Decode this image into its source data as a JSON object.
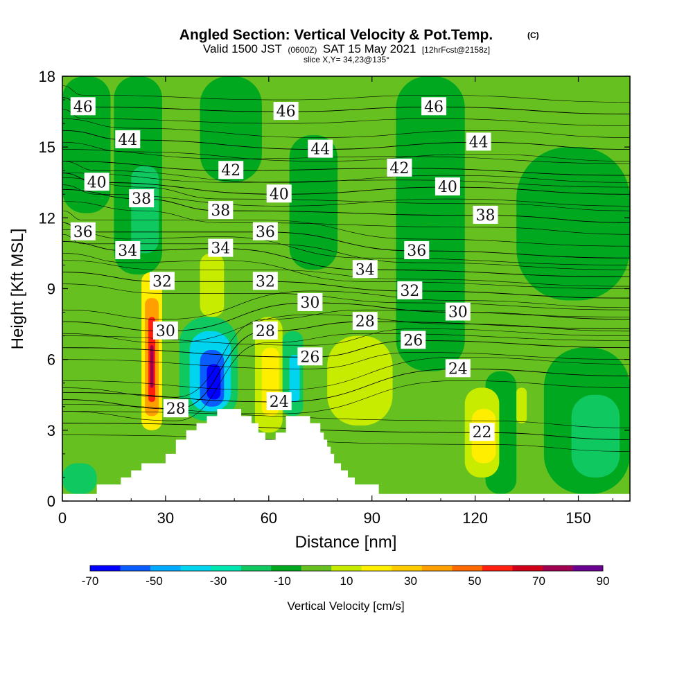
{
  "title": {
    "main": "Angled Section: Vertical Velocity & Pot.Temp.",
    "main_tag": "(C)",
    "valid_prefix": "Valid 1500 JST",
    "valid_utc": "(0600Z)",
    "valid_date": "SAT 15 May 2021",
    "forecast": "[12hrFcst@2158z]",
    "slice": "slice X,Y= 34,23@135°"
  },
  "chart_data": {
    "type": "heatmap",
    "xlabel": "Distance [nm]",
    "ylabel": "Height [Kft MSL]",
    "xlim": [
      0,
      165
    ],
    "ylim": [
      0,
      18
    ],
    "x_ticks": [
      "0",
      "30",
      "60",
      "90",
      "120",
      "150"
    ],
    "y_ticks": [
      "0",
      "3",
      "6",
      "9",
      "12",
      "15",
      "18"
    ],
    "grid": false,
    "colorbar": {
      "label": "Vertical Velocity [cm/s]",
      "tick_labels": [
        "-70",
        "-50",
        "-30",
        "-10",
        "10",
        "30",
        "50",
        "70",
        "90"
      ],
      "levels": [
        -70,
        -60,
        -50,
        -40,
        -30,
        -20,
        -10,
        0,
        10,
        20,
        30,
        40,
        50,
        60,
        70,
        80,
        90
      ],
      "colors": [
        "#0000ff",
        "#0a5cff",
        "#00aaff",
        "#00d4ee",
        "#00e6b0",
        "#10c860",
        "#00a820",
        "#66c020",
        "#c8ec00",
        "#ffee00",
        "#ffcc00",
        "#ffa000",
        "#ff6a00",
        "#ff2010",
        "#d00018",
        "#a00050",
        "#6a0090"
      ]
    },
    "terrain_kft": [
      [
        0,
        0.3
      ],
      [
        10,
        0.3
      ],
      [
        10,
        0.7
      ],
      [
        17,
        0.7
      ],
      [
        17,
        1.0
      ],
      [
        20,
        1.0
      ],
      [
        20,
        1.3
      ],
      [
        23,
        1.3
      ],
      [
        23,
        1.6
      ],
      [
        30,
        1.6
      ],
      [
        30,
        2.0
      ],
      [
        33,
        2.0
      ],
      [
        33,
        2.6
      ],
      [
        36,
        2.6
      ],
      [
        36,
        3.0
      ],
      [
        39,
        3.0
      ],
      [
        39,
        3.3
      ],
      [
        42,
        3.3
      ],
      [
        42,
        3.6
      ],
      [
        45,
        3.6
      ],
      [
        45,
        3.9
      ],
      [
        52,
        3.9
      ],
      [
        52,
        3.6
      ],
      [
        55,
        3.6
      ],
      [
        55,
        3.3
      ],
      [
        57,
        3.3
      ],
      [
        57,
        2.9
      ],
      [
        59,
        2.9
      ],
      [
        59,
        2.6
      ],
      [
        62,
        2.6
      ],
      [
        62,
        2.9
      ],
      [
        65,
        2.9
      ],
      [
        65,
        3.6
      ],
      [
        72,
        3.6
      ],
      [
        72,
        3.3
      ],
      [
        75,
        3.3
      ],
      [
        75,
        2.9
      ],
      [
        76,
        2.9
      ],
      [
        76,
        2.6
      ],
      [
        77,
        2.6
      ],
      [
        77,
        2.3
      ],
      [
        78,
        2.3
      ],
      [
        78,
        2.0
      ],
      [
        79,
        2.0
      ],
      [
        79,
        1.6
      ],
      [
        81,
        1.6
      ],
      [
        81,
        1.3
      ],
      [
        83,
        1.3
      ],
      [
        83,
        1.0
      ],
      [
        85,
        1.0
      ],
      [
        85,
        0.7
      ],
      [
        92,
        0.7
      ],
      [
        92,
        0.3
      ],
      [
        165,
        0.3
      ]
    ],
    "theta_contour_labels": [
      {
        "text": "46",
        "x": 6,
        "y": 16.7
      },
      {
        "text": "46",
        "x": 65,
        "y": 16.5
      },
      {
        "text": "46",
        "x": 108,
        "y": 16.7
      },
      {
        "text": "44",
        "x": 19,
        "y": 15.3
      },
      {
        "text": "44",
        "x": 75,
        "y": 14.9
      },
      {
        "text": "44",
        "x": 121,
        "y": 15.2
      },
      {
        "text": "42",
        "x": 49,
        "y": 14.0
      },
      {
        "text": "42",
        "x": 98,
        "y": 14.1
      },
      {
        "text": "40",
        "x": 10,
        "y": 13.5
      },
      {
        "text": "40",
        "x": 63,
        "y": 13.0
      },
      {
        "text": "40",
        "x": 112,
        "y": 13.3
      },
      {
        "text": "38",
        "x": 23,
        "y": 12.8
      },
      {
        "text": "38",
        "x": 46,
        "y": 12.3
      },
      {
        "text": "38",
        "x": 123,
        "y": 12.1
      },
      {
        "text": "36",
        "x": 6,
        "y": 11.4
      },
      {
        "text": "36",
        "x": 59,
        "y": 11.4
      },
      {
        "text": "36",
        "x": 103,
        "y": 10.6
      },
      {
        "text": "34",
        "x": 19,
        "y": 10.6
      },
      {
        "text": "34",
        "x": 46,
        "y": 10.7
      },
      {
        "text": "34",
        "x": 88,
        "y": 9.8
      },
      {
        "text": "32",
        "x": 29,
        "y": 9.3
      },
      {
        "text": "32",
        "x": 59,
        "y": 9.3
      },
      {
        "text": "32",
        "x": 101,
        "y": 8.9
      },
      {
        "text": "30",
        "x": 30,
        "y": 7.2
      },
      {
        "text": "30",
        "x": 72,
        "y": 8.4
      },
      {
        "text": "30",
        "x": 115,
        "y": 8.0
      },
      {
        "text": "28",
        "x": 33,
        "y": 3.9
      },
      {
        "text": "28",
        "x": 59,
        "y": 7.2
      },
      {
        "text": "28",
        "x": 88,
        "y": 7.6
      },
      {
        "text": "26",
        "x": 72,
        "y": 6.1
      },
      {
        "text": "26",
        "x": 102,
        "y": 6.8
      },
      {
        "text": "24",
        "x": 63,
        "y": 4.2
      },
      {
        "text": "24",
        "x": 115,
        "y": 5.6
      },
      {
        "text": "22",
        "x": 122,
        "y": 2.9
      }
    ],
    "vertical_velocity_cells": [
      {
        "x0": 0,
        "x1": 165,
        "y0": 0,
        "y1": 18,
        "value": 5
      },
      {
        "x0": 0,
        "x1": 14,
        "y0": 12.2,
        "y1": 18,
        "value": -5
      },
      {
        "x0": 15,
        "x1": 29,
        "y0": 9.6,
        "y1": 18,
        "value": -5
      },
      {
        "x0": 20,
        "x1": 28,
        "y0": 10.5,
        "y1": 14.2,
        "value": -15
      },
      {
        "x0": 40,
        "x1": 58,
        "y0": 13.5,
        "y1": 18,
        "value": -5
      },
      {
        "x0": 66,
        "x1": 80,
        "y0": 9.8,
        "y1": 15.5,
        "value": -5
      },
      {
        "x0": 97,
        "x1": 117,
        "y0": 5.5,
        "y1": 18,
        "value": -5
      },
      {
        "x0": 132,
        "x1": 165,
        "y0": 8.5,
        "y1": 15,
        "value": -5
      },
      {
        "x0": 140,
        "x1": 165,
        "y0": 0.3,
        "y1": 6.5,
        "value": -5
      },
      {
        "x0": 148,
        "x1": 162,
        "y0": 1.0,
        "y1": 4.5,
        "value": -15
      },
      {
        "x0": 123,
        "x1": 132,
        "y0": 0.3,
        "y1": 5.5,
        "value": -5
      },
      {
        "x0": 0,
        "x1": 10,
        "y0": 0.3,
        "y1": 1.6,
        "value": -15
      },
      {
        "x0": 23,
        "x1": 29,
        "y0": 3.0,
        "y1": 9.7,
        "value": 25
      },
      {
        "x0": 24,
        "x1": 28,
        "y0": 3.6,
        "y1": 8.6,
        "value": 45
      },
      {
        "x0": 25,
        "x1": 27,
        "y0": 4.2,
        "y1": 7.8,
        "value": 65
      },
      {
        "x0": 25.5,
        "x1": 26.5,
        "y0": 4.8,
        "y1": 6.6,
        "value": 85
      },
      {
        "x0": 40,
        "x1": 47,
        "y0": 7.8,
        "y1": 10.5,
        "value": 15
      },
      {
        "x0": 34,
        "x1": 51,
        "y0": 3.4,
        "y1": 7.8,
        "value": -15
      },
      {
        "x0": 37,
        "x1": 49,
        "y0": 3.8,
        "y1": 7.2,
        "value": -35
      },
      {
        "x0": 40,
        "x1": 47,
        "y0": 4.0,
        "y1": 6.4,
        "value": -55
      },
      {
        "x0": 42,
        "x1": 46,
        "y0": 4.3,
        "y1": 5.8,
        "value": -70
      },
      {
        "x0": 56,
        "x1": 64,
        "y0": 2.9,
        "y1": 7.8,
        "value": 15
      },
      {
        "x0": 58,
        "x1": 63,
        "y0": 3.6,
        "y1": 6.5,
        "value": 25
      },
      {
        "x0": 64,
        "x1": 70,
        "y0": 3.6,
        "y1": 7.2,
        "value": -20
      },
      {
        "x0": 66,
        "x1": 69,
        "y0": 4.2,
        "y1": 6.2,
        "value": -35
      },
      {
        "x0": 77,
        "x1": 96,
        "y0": 3.2,
        "y1": 7.0,
        "value": 15
      },
      {
        "x0": 117,
        "x1": 127,
        "y0": 1.0,
        "y1": 4.8,
        "value": 15
      },
      {
        "x0": 119,
        "x1": 126,
        "y0": 1.6,
        "y1": 3.9,
        "value": 25
      },
      {
        "x0": 132,
        "x1": 135,
        "y0": 3.3,
        "y1": 4.8,
        "value": 15
      }
    ]
  }
}
